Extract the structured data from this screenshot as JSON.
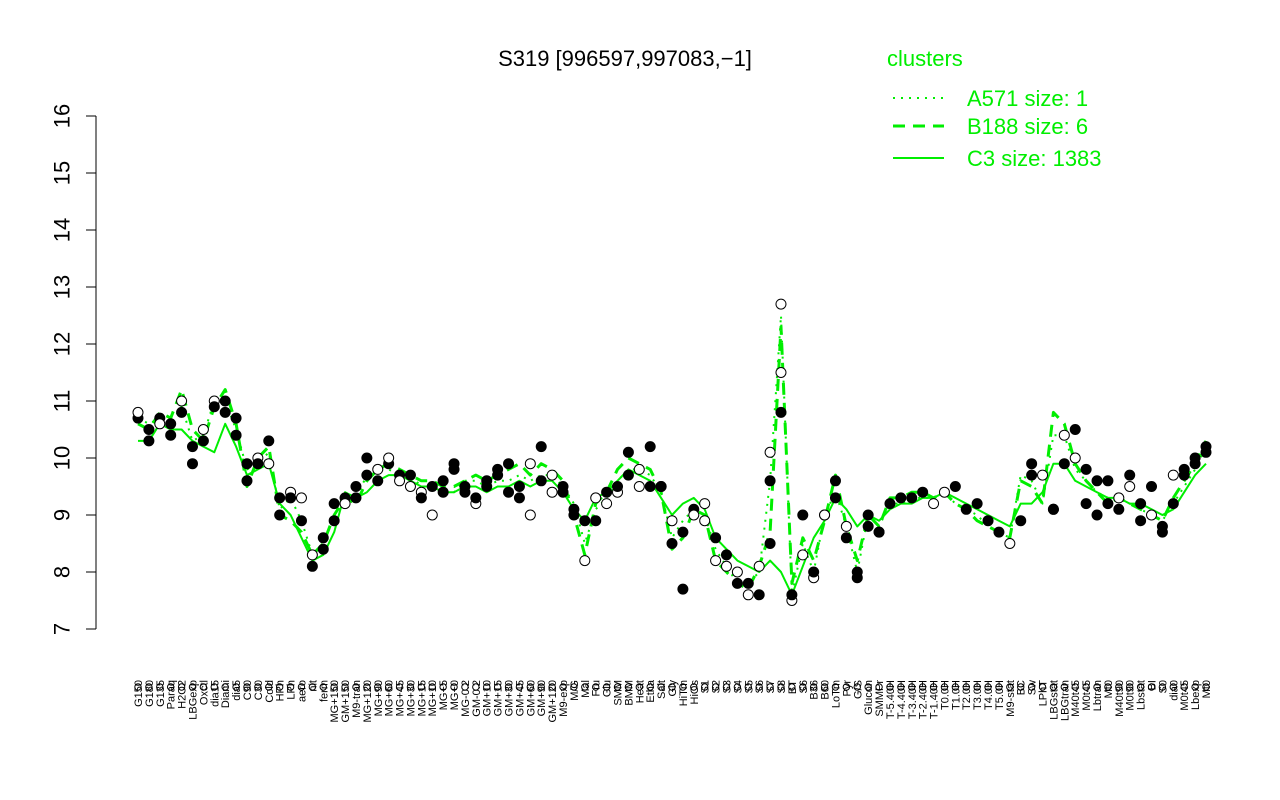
{
  "chart_data": {
    "type": "line",
    "title": "S319 [996597,997083,−1]",
    "ylim": [
      7,
      16
    ],
    "y_ticks": [
      7,
      8,
      9,
      10,
      11,
      12,
      13,
      14,
      15,
      16
    ],
    "legend": {
      "title": "clusters",
      "placement": "top-right",
      "entries": [
        {
          "label": "A571 size: 1",
          "style": "dotted"
        },
        {
          "label": "B188 size: 6",
          "style": "dashed"
        },
        {
          "label": "C3 size: 1383",
          "style": "solid"
        }
      ]
    },
    "colors": {
      "lines": "#00ee00",
      "points": "#000000",
      "axis": "#000000"
    },
    "x_labels": [
      "G150",
      "G180",
      "G135",
      "Paraq",
      "H2O2",
      "LBGexp",
      "Oxctl",
      "dia15",
      "Diami",
      "dia5",
      "C90",
      "C30",
      "Cold",
      "HPh",
      "LPh",
      "aero",
      "nit",
      "ferm",
      "MG+150",
      "GM+150",
      "M9-tran",
      "MG+120",
      "MG+90",
      "MG+60",
      "MG+45",
      "MG+30",
      "MG+15",
      "MG+10",
      "MG+5",
      "MG+0",
      "MG-0.2",
      "GM-0.2",
      "GM+10",
      "GM+15",
      "GM+30",
      "GM+45",
      "GM+60",
      "GM+90",
      "GM+120",
      "M9-exp",
      "M/G",
      "Mal",
      "Fru",
      "Glu",
      "SMM",
      "BMM",
      "Heat",
      "Etha",
      "Salt",
      "Gly",
      "HiTm",
      "HiOs",
      "S1",
      "S2",
      "S3",
      "S4",
      "S5",
      "S6",
      "S7",
      "S8",
      "BT",
      "S6",
      "B36",
      "B60",
      "LoTm",
      "Pyr",
      "G/S",
      "Glucon",
      "SMMPr",
      "T-5.40H",
      "T-4.40H",
      "T-3.40H",
      "T-2.40H",
      "T-1.40H",
      "T0.0H",
      "T1.0H",
      "T2.0H",
      "T3.0H",
      "T4.0H",
      "T5.0H",
      "M9-stat",
      "BC",
      "Sw",
      "LPhT",
      "LBGstat",
      "LBGtran",
      "M40t45",
      "M0t45",
      "Lbtran",
      "Mt0",
      "M40t90",
      "M0t90",
      "Lbstat",
      "BI",
      "S0",
      "dia0",
      "M0t45",
      "Lbexp",
      "Mt0"
    ],
    "series": [
      {
        "name": "C3 size: 1383",
        "style": "solid",
        "values": [
          10.3,
          10.3,
          10.6,
          10.5,
          10.5,
          10.3,
          10.2,
          10.1,
          10.6,
          10.2,
          9.7,
          9.8,
          9.9,
          9.2,
          9.0,
          8.6,
          8.2,
          8.3,
          8.7,
          9.4,
          9.3,
          9.4,
          9.6,
          9.7,
          9.7,
          9.6,
          9.5,
          9.5,
          9.4,
          9.4,
          9.5,
          9.5,
          9.4,
          9.5,
          9.5,
          9.6,
          9.5,
          9.6,
          9.6,
          9.4,
          9.1,
          8.9,
          9.3,
          9.4,
          9.6,
          9.8,
          9.7,
          9.6,
          9.3,
          9.0,
          9.2,
          9.3,
          9.1,
          8.6,
          8.4,
          8.2,
          8.1,
          8.0,
          8.2,
          8.0,
          7.6,
          8.1,
          8.6,
          8.9,
          9.3,
          9.1,
          8.8,
          9.0,
          8.9,
          9.1,
          9.2,
          9.2,
          9.3,
          9.3,
          9.4,
          9.3,
          9.2,
          9.1,
          9.0,
          8.9,
          8.8,
          9.2,
          9.2,
          9.4,
          9.9,
          9.9,
          9.6,
          9.5,
          9.4,
          9.3,
          9.3,
          9.2,
          9.2,
          9.1,
          9.0,
          9.1,
          9.4,
          9.7,
          9.9
        ]
      },
      {
        "name": "B188 size: 6",
        "style": "dashed",
        "values": [
          10.6,
          10.5,
          10.8,
          10.7,
          11.2,
          10.5,
          10.3,
          10.9,
          11.2,
          10.6,
          9.5,
          10.0,
          10.2,
          9.0,
          8.9,
          8.7,
          8.3,
          8.5,
          9.0,
          9.3,
          9.2,
          9.6,
          9.8,
          9.9,
          9.8,
          9.7,
          9.6,
          9.6,
          9.5,
          9.5,
          9.6,
          9.7,
          9.6,
          9.7,
          9.8,
          9.9,
          9.7,
          9.9,
          9.8,
          9.6,
          9.0,
          8.3,
          9.2,
          9.4,
          9.8,
          10.0,
          9.9,
          9.8,
          9.4,
          8.4,
          8.6,
          9.1,
          9.0,
          8.2,
          8.0,
          7.8,
          7.7,
          8.1,
          8.7,
          12.3,
          7.8,
          8.6,
          8.2,
          8.9,
          9.7,
          8.8,
          8.2,
          9.0,
          8.8,
          9.3,
          9.3,
          9.4,
          9.4,
          9.3,
          9.4,
          9.2,
          9.1,
          8.9,
          8.8,
          8.7,
          8.6,
          9.6,
          9.5,
          9.2,
          10.8,
          10.6,
          9.9,
          9.6,
          9.4,
          9.2,
          9.3,
          9.2,
          9.1,
          9.0,
          8.9,
          9.3,
          9.6,
          9.9,
          10.3
        ]
      },
      {
        "name": "A571 size: 1",
        "style": "dotted",
        "values": [
          10.7,
          10.6,
          10.7,
          10.6,
          10.9,
          10.3,
          10.4,
          11.0,
          11.0,
          10.5,
          9.8,
          9.9,
          10.1,
          9.1,
          9.3,
          8.9,
          8.3,
          8.5,
          9.0,
          9.4,
          9.3,
          9.7,
          9.8,
          9.8,
          9.7,
          9.7,
          9.5,
          9.5,
          9.4,
          9.4,
          9.6,
          9.6,
          9.5,
          9.6,
          9.6,
          9.7,
          9.6,
          9.7,
          9.7,
          9.5,
          9.2,
          8.5,
          9.1,
          9.3,
          9.6,
          9.8,
          9.8,
          9.7,
          9.4,
          8.6,
          8.9,
          9.1,
          9.0,
          8.4,
          8.1,
          7.8,
          7.8,
          8.0,
          9.6,
          12.5,
          7.6,
          8.5,
          8.0,
          9.0,
          9.4,
          8.8,
          8.0,
          9.0,
          8.8,
          9.2,
          9.2,
          9.3,
          9.3,
          9.3,
          9.4,
          9.2,
          9.1,
          9.0,
          8.8,
          8.7,
          8.6,
          9.7,
          9.6,
          9.2,
          10.4,
          10.4,
          9.8,
          9.6,
          9.4,
          9.3,
          9.3,
          9.2,
          9.1,
          9.0,
          8.9,
          9.2,
          9.5,
          9.8,
          10.2
        ]
      }
    ],
    "points": [
      {
        "x": 0,
        "y": 10.7
      },
      {
        "x": 0,
        "y": 10.8
      },
      {
        "x": 1,
        "y": 10.5
      },
      {
        "x": 1,
        "y": 10.3
      },
      {
        "x": 2,
        "y": 10.7
      },
      {
        "x": 2,
        "y": 10.6
      },
      {
        "x": 3,
        "y": 10.6
      },
      {
        "x": 3,
        "y": 10.4
      },
      {
        "x": 4,
        "y": 11.0
      },
      {
        "x": 4,
        "y": 10.8
      },
      {
        "x": 5,
        "y": 10.2
      },
      {
        "x": 5,
        "y": 9.9
      },
      {
        "x": 6,
        "y": 10.5
      },
      {
        "x": 6,
        "y": 10.3
      },
      {
        "x": 7,
        "y": 11.0
      },
      {
        "x": 7,
        "y": 10.9
      },
      {
        "x": 8,
        "y": 11.0
      },
      {
        "x": 8,
        "y": 10.8
      },
      {
        "x": 9,
        "y": 10.7
      },
      {
        "x": 9,
        "y": 10.4
      },
      {
        "x": 10,
        "y": 9.9
      },
      {
        "x": 10,
        "y": 9.6
      },
      {
        "x": 11,
        "y": 10.0
      },
      {
        "x": 11,
        "y": 9.9
      },
      {
        "x": 12,
        "y": 10.3
      },
      {
        "x": 12,
        "y": 9.9
      },
      {
        "x": 13,
        "y": 9.0
      },
      {
        "x": 13,
        "y": 9.3
      },
      {
        "x": 14,
        "y": 9.4
      },
      {
        "x": 14,
        "y": 9.3
      },
      {
        "x": 15,
        "y": 8.9
      },
      {
        "x": 15,
        "y": 9.3
      },
      {
        "x": 16,
        "y": 8.3
      },
      {
        "x": 16,
        "y": 8.1
      },
      {
        "x": 17,
        "y": 8.4
      },
      {
        "x": 17,
        "y": 8.6
      },
      {
        "x": 18,
        "y": 8.9
      },
      {
        "x": 18,
        "y": 9.2
      },
      {
        "x": 19,
        "y": 9.3
      },
      {
        "x": 19,
        "y": 9.2
      },
      {
        "x": 20,
        "y": 9.3
      },
      {
        "x": 20,
        "y": 9.5
      },
      {
        "x": 21,
        "y": 10.0
      },
      {
        "x": 21,
        "y": 9.7
      },
      {
        "x": 22,
        "y": 9.8
      },
      {
        "x": 22,
        "y": 9.6
      },
      {
        "x": 23,
        "y": 9.9
      },
      {
        "x": 23,
        "y": 10.0
      },
      {
        "x": 24,
        "y": 9.7
      },
      {
        "x": 24,
        "y": 9.6
      },
      {
        "x": 25,
        "y": 9.5
      },
      {
        "x": 25,
        "y": 9.7
      },
      {
        "x": 26,
        "y": 9.4
      },
      {
        "x": 26,
        "y": 9.3
      },
      {
        "x": 27,
        "y": 9.5
      },
      {
        "x": 27,
        "y": 9.0
      },
      {
        "x": 28,
        "y": 9.4
      },
      {
        "x": 28,
        "y": 9.6
      },
      {
        "x": 29,
        "y": 9.8
      },
      {
        "x": 29,
        "y": 9.9
      },
      {
        "x": 30,
        "y": 9.5
      },
      {
        "x": 30,
        "y": 9.4
      },
      {
        "x": 31,
        "y": 9.2
      },
      {
        "x": 31,
        "y": 9.3
      },
      {
        "x": 32,
        "y": 9.6
      },
      {
        "x": 32,
        "y": 9.5
      },
      {
        "x": 33,
        "y": 9.8
      },
      {
        "x": 33,
        "y": 9.7
      },
      {
        "x": 34,
        "y": 9.9
      },
      {
        "x": 34,
        "y": 9.4
      },
      {
        "x": 35,
        "y": 9.3
      },
      {
        "x": 35,
        "y": 9.5
      },
      {
        "x": 36,
        "y": 9.9
      },
      {
        "x": 36,
        "y": 9.0
      },
      {
        "x": 37,
        "y": 10.2
      },
      {
        "x": 37,
        "y": 9.6
      },
      {
        "x": 38,
        "y": 9.7
      },
      {
        "x": 38,
        "y": 9.4
      },
      {
        "x": 39,
        "y": 9.5
      },
      {
        "x": 39,
        "y": 9.4
      },
      {
        "x": 40,
        "y": 9.1
      },
      {
        "x": 40,
        "y": 9.0
      },
      {
        "x": 41,
        "y": 8.2
      },
      {
        "x": 41,
        "y": 8.9
      },
      {
        "x": 42,
        "y": 8.9
      },
      {
        "x": 42,
        "y": 9.3
      },
      {
        "x": 43,
        "y": 9.2
      },
      {
        "x": 43,
        "y": 9.4
      },
      {
        "x": 44,
        "y": 9.4
      },
      {
        "x": 44,
        "y": 9.5
      },
      {
        "x": 45,
        "y": 9.7
      },
      {
        "x": 45,
        "y": 10.1
      },
      {
        "x": 46,
        "y": 9.8
      },
      {
        "x": 46,
        "y": 9.5
      },
      {
        "x": 47,
        "y": 10.2
      },
      {
        "x": 47,
        "y": 9.5
      },
      {
        "x": 48,
        "y": 9.5
      },
      {
        "x": 48,
        "y": 9.5
      },
      {
        "x": 49,
        "y": 8.5
      },
      {
        "x": 49,
        "y": 8.9
      },
      {
        "x": 50,
        "y": 7.7
      },
      {
        "x": 50,
        "y": 8.7
      },
      {
        "x": 51,
        "y": 9.1
      },
      {
        "x": 51,
        "y": 9.0
      },
      {
        "x": 52,
        "y": 9.2
      },
      {
        "x": 52,
        "y": 8.9
      },
      {
        "x": 53,
        "y": 8.6
      },
      {
        "x": 53,
        "y": 8.2
      },
      {
        "x": 54,
        "y": 8.1
      },
      {
        "x": 54,
        "y": 8.3
      },
      {
        "x": 55,
        "y": 7.8
      },
      {
        "x": 55,
        "y": 8.0
      },
      {
        "x": 56,
        "y": 7.6
      },
      {
        "x": 56,
        "y": 7.8
      },
      {
        "x": 57,
        "y": 7.6
      },
      {
        "x": 57,
        "y": 8.1
      },
      {
        "x": 58,
        "y": 10.1
      },
      {
        "x": 58,
        "y": 9.6
      },
      {
        "x": 58,
        "y": 8.5
      },
      {
        "x": 59,
        "y": 12.7
      },
      {
        "x": 59,
        "y": 11.5
      },
      {
        "x": 59,
        "y": 10.8
      },
      {
        "x": 60,
        "y": 7.5
      },
      {
        "x": 60,
        "y": 7.6
      },
      {
        "x": 61,
        "y": 8.3
      },
      {
        "x": 61,
        "y": 9.0
      },
      {
        "x": 62,
        "y": 7.9
      },
      {
        "x": 62,
        "y": 8.0
      },
      {
        "x": 63,
        "y": 9.0
      },
      {
        "x": 63,
        "y": 9.0
      },
      {
        "x": 64,
        "y": 9.6
      },
      {
        "x": 64,
        "y": 9.3
      },
      {
        "x": 65,
        "y": 8.8
      },
      {
        "x": 65,
        "y": 8.6
      },
      {
        "x": 66,
        "y": 7.9
      },
      {
        "x": 66,
        "y": 8.0
      },
      {
        "x": 67,
        "y": 9.0
      },
      {
        "x": 67,
        "y": 8.8
      },
      {
        "x": 68,
        "y": 8.7
      },
      {
        "x": 68,
        "y": 8.7
      },
      {
        "x": 69,
        "y": 9.2
      },
      {
        "x": 70,
        "y": 9.3
      },
      {
        "x": 71,
        "y": 9.3
      },
      {
        "x": 72,
        "y": 9.4
      },
      {
        "x": 73,
        "y": 9.2
      },
      {
        "x": 74,
        "y": 9.4
      },
      {
        "x": 75,
        "y": 9.5
      },
      {
        "x": 76,
        "y": 9.1
      },
      {
        "x": 77,
        "y": 9.2
      },
      {
        "x": 78,
        "y": 8.9
      },
      {
        "x": 79,
        "y": 8.7
      },
      {
        "x": 80,
        "y": 8.5
      },
      {
        "x": 81,
        "y": 8.9
      },
      {
        "x": 82,
        "y": 9.9
      },
      {
        "x": 82,
        "y": 9.7
      },
      {
        "x": 83,
        "y": 9.7
      },
      {
        "x": 84,
        "y": 9.1
      },
      {
        "x": 84,
        "y": 9.1
      },
      {
        "x": 85,
        "y": 10.4
      },
      {
        "x": 85,
        "y": 9.9
      },
      {
        "x": 86,
        "y": 10.5
      },
      {
        "x": 86,
        "y": 10.0
      },
      {
        "x": 87,
        "y": 9.8
      },
      {
        "x": 87,
        "y": 9.2
      },
      {
        "x": 88,
        "y": 9.6
      },
      {
        "x": 88,
        "y": 9.0
      },
      {
        "x": 89,
        "y": 9.6
      },
      {
        "x": 89,
        "y": 9.2
      },
      {
        "x": 90,
        "y": 9.3
      },
      {
        "x": 90,
        "y": 9.1
      },
      {
        "x": 91,
        "y": 9.7
      },
      {
        "x": 91,
        "y": 9.5
      },
      {
        "x": 92,
        "y": 9.2
      },
      {
        "x": 92,
        "y": 8.9
      },
      {
        "x": 93,
        "y": 9.5
      },
      {
        "x": 93,
        "y": 9.0
      },
      {
        "x": 94,
        "y": 8.8
      },
      {
        "x": 94,
        "y": 8.7
      },
      {
        "x": 95,
        "y": 9.2
      },
      {
        "x": 95,
        "y": 9.7
      },
      {
        "x": 96,
        "y": 9.8
      },
      {
        "x": 96,
        "y": 9.7
      },
      {
        "x": 97,
        "y": 9.9
      },
      {
        "x": 97,
        "y": 10.0
      },
      {
        "x": 98,
        "y": 10.1
      },
      {
        "x": 98,
        "y": 10.2
      }
    ]
  }
}
